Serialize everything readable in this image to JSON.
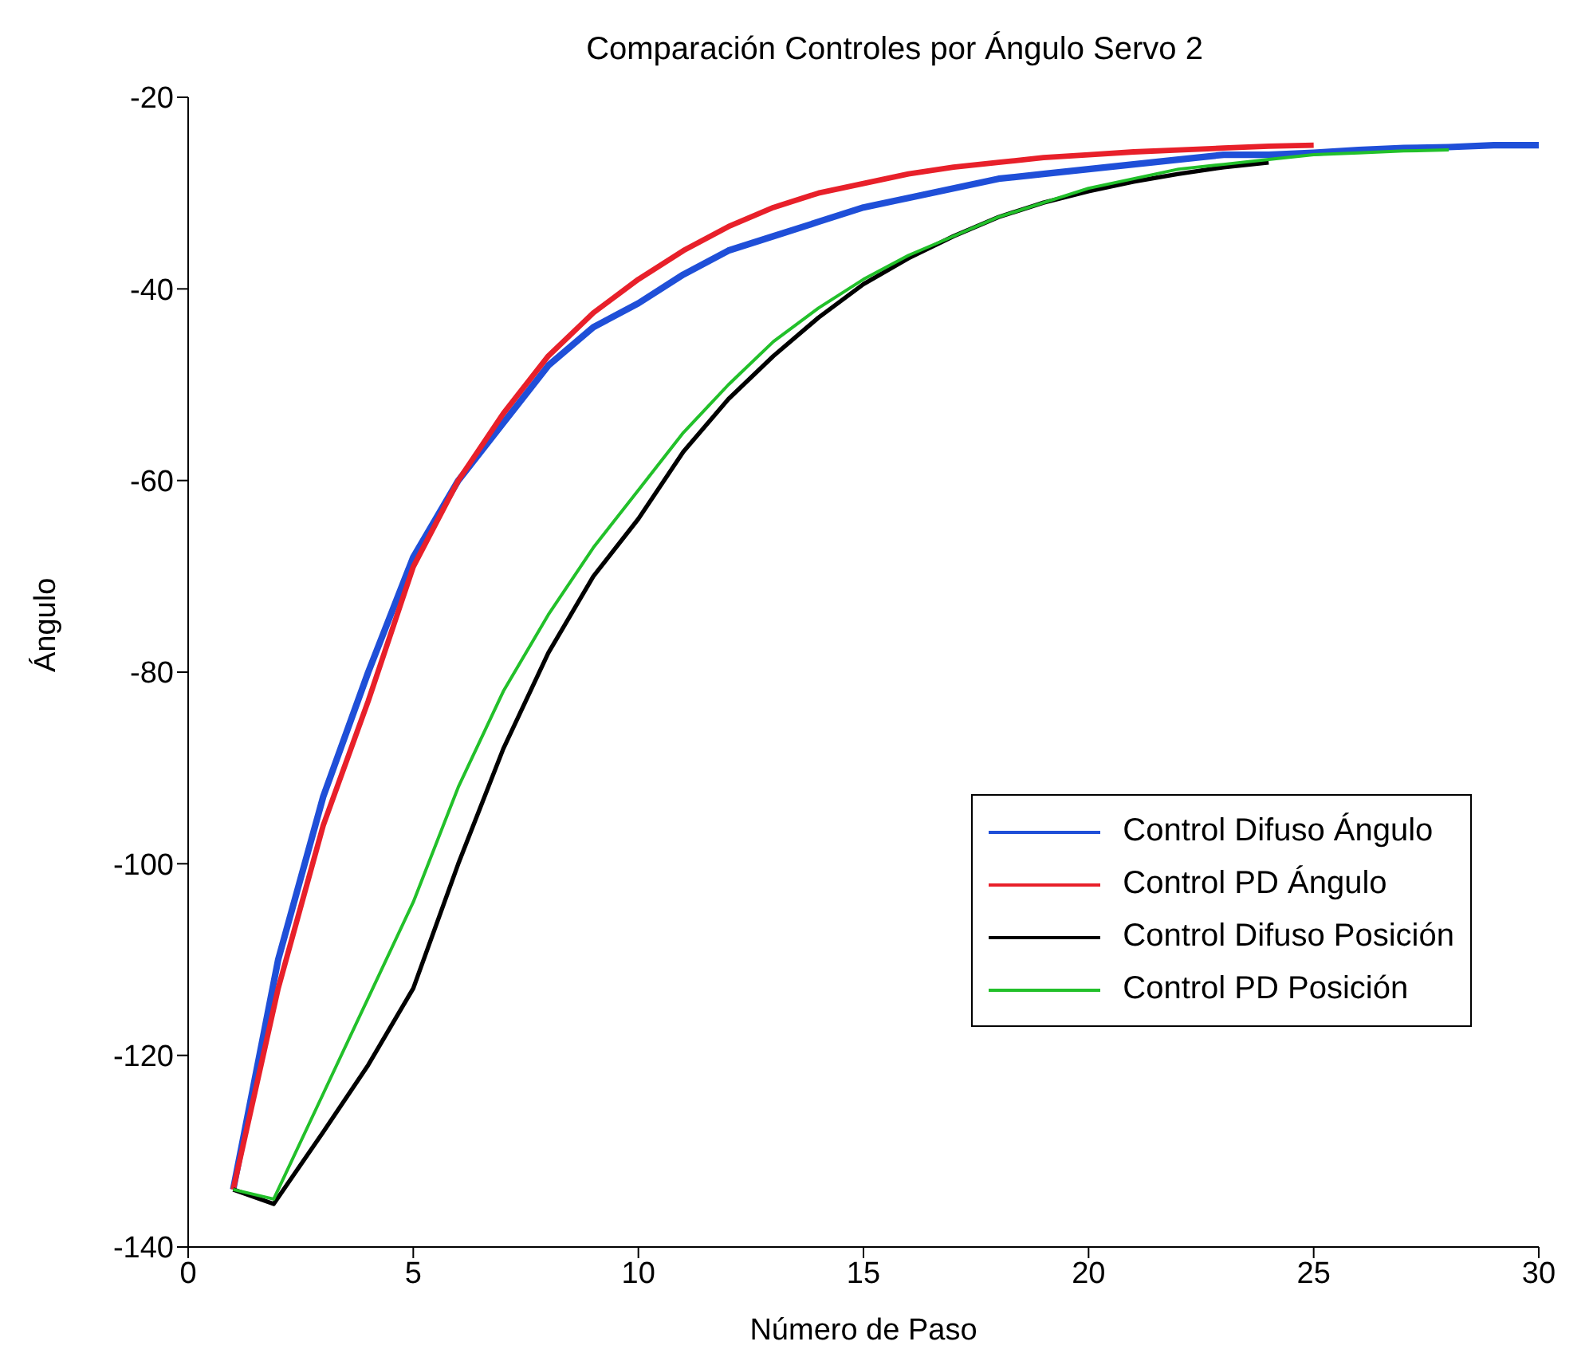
{
  "chart_data": {
    "type": "line",
    "title": "Comparación Controles por Ángulo Servo 2",
    "xlabel": "Número de Paso",
    "ylabel": "Ángulo",
    "xlim": [
      0,
      30
    ],
    "xticks": [
      0,
      5,
      10,
      15,
      20,
      25,
      30
    ],
    "ylim": [
      -140,
      -20
    ],
    "yticks": [
      -140,
      -120,
      -100,
      -80,
      -60,
      -40,
      -20
    ],
    "grid": false,
    "legend": "right",
    "marker": "none",
    "line_style": "solid",
    "series": [
      {
        "name": "Control Difuso Ángulo",
        "color": "#1f4fd8",
        "x": [
          1,
          2,
          3,
          4,
          5,
          6,
          7,
          8,
          9,
          10,
          11,
          12,
          13,
          14,
          15,
          16,
          17,
          18,
          19,
          20,
          21,
          22,
          23,
          24,
          25,
          26,
          27,
          28,
          29,
          30
        ],
        "values": [
          -134,
          -110,
          -93,
          -80,
          -68,
          -60,
          -54,
          -48,
          -44,
          -41.5,
          -38.5,
          -36,
          -34.5,
          -33,
          -31.5,
          -30.5,
          -29.5,
          -28.5,
          -28,
          -27.5,
          -27,
          -26.5,
          -26,
          -26,
          -25.8,
          -25.5,
          -25.3,
          -25.2,
          -25,
          -25
        ]
      },
      {
        "name": "Control PD Ángulo",
        "color": "#e8202a",
        "x": [
          1,
          2,
          3,
          4,
          5,
          6,
          7,
          8,
          9,
          10,
          11,
          12,
          13,
          14,
          15,
          16,
          17,
          18,
          19,
          20,
          21,
          22,
          23,
          24,
          25
        ],
        "values": [
          -134,
          -113,
          -96,
          -83,
          -69,
          -60,
          -53,
          -47,
          -42.5,
          -39,
          -36,
          -33.5,
          -31.5,
          -30,
          -29,
          -28,
          -27.3,
          -26.8,
          -26.3,
          -26,
          -25.7,
          -25.5,
          -25.3,
          -25.1,
          -25
        ]
      },
      {
        "name": "Control Difuso Posición",
        "color": "#000000",
        "x": [
          1,
          1.9,
          3,
          4,
          5,
          6,
          7,
          8,
          9,
          10,
          11,
          12,
          13,
          14,
          15,
          16,
          17,
          18,
          19,
          20,
          21,
          22,
          23,
          24
        ],
        "values": [
          -134,
          -135.5,
          -128,
          -121,
          -113,
          -100,
          -88,
          -78,
          -70,
          -64,
          -57,
          -51.5,
          -47,
          -43,
          -39.5,
          -36.8,
          -34.5,
          -32.5,
          -31,
          -29.8,
          -28.8,
          -28,
          -27.3,
          -26.8
        ]
      },
      {
        "name": "Control PD Posición",
        "color": "#22c02a",
        "x": [
          1,
          1.9,
          3,
          4,
          5,
          6,
          7,
          8,
          9,
          10,
          11,
          12,
          13,
          14,
          15,
          16,
          17,
          18,
          19,
          20,
          21,
          22,
          23,
          24,
          25,
          26,
          27,
          28
        ],
        "values": [
          -134,
          -135,
          -124,
          -114,
          -104,
          -92,
          -82,
          -74,
          -67,
          -61,
          -55,
          -50,
          -45.5,
          -42,
          -39,
          -36.5,
          -34.5,
          -32.5,
          -31,
          -29.5,
          -28.5,
          -27.5,
          -27,
          -26.5,
          -26,
          -25.8,
          -25.6,
          -25.5
        ]
      }
    ]
  }
}
